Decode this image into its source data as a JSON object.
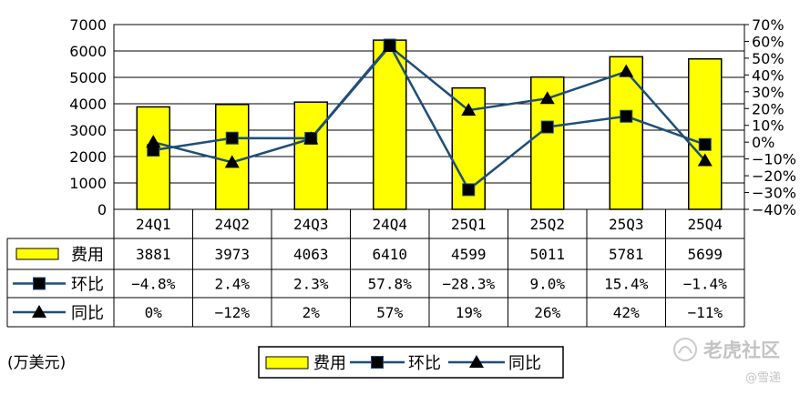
{
  "chart_data": {
    "type": "bar",
    "categories": [
      "24Q1",
      "24Q2",
      "24Q3",
      "24Q4",
      "25Q1",
      "25Q2",
      "25Q3",
      "25Q4"
    ],
    "ylim": [
      0,
      7000
    ],
    "y_ticks": [
      "0",
      "1000",
      "2000",
      "3000",
      "4000",
      "5000",
      "6000",
      "7000"
    ],
    "y2lim": [
      -40,
      70
    ],
    "y2_ticks": [
      "-40%",
      "-30%",
      "-20%",
      "-10%",
      "0%",
      "10%",
      "20%",
      "30%",
      "40%",
      "50%",
      "60%",
      "70%"
    ],
    "grid": true,
    "unit_label": "(万美元)",
    "series": [
      {
        "name": "费用",
        "type": "bar",
        "axis": "left",
        "color": "#ffff00",
        "values": [
          3881,
          3973,
          4063,
          6410,
          4599,
          5011,
          5781,
          5699
        ],
        "labels": [
          "3881",
          "3973",
          "4063",
          "6410",
          "4599",
          "5011",
          "5781",
          "5699"
        ]
      },
      {
        "name": "环比",
        "type": "line",
        "axis": "right",
        "marker": "square",
        "color": "#1f4e79",
        "values": [
          -4.8,
          2.4,
          2.3,
          57.8,
          -28.3,
          9.0,
          15.4,
          -1.4
        ],
        "labels": [
          "-4.8%",
          "2.4%",
          "2.3%",
          "57.8%",
          "-28.3%",
          "9.0%",
          "15.4%",
          "-1.4%"
        ]
      },
      {
        "name": "同比",
        "type": "line",
        "axis": "right",
        "marker": "triangle",
        "color": "#1f4e79",
        "values": [
          0,
          -12,
          2,
          57,
          19,
          26,
          42,
          -11
        ],
        "labels": [
          "0%",
          "-12%",
          "2%",
          "57%",
          "19%",
          "26%",
          "42%",
          "-11%"
        ]
      }
    ],
    "legend": {
      "placement": "bottom-center",
      "items": [
        "费用",
        "环比",
        "同比"
      ]
    }
  },
  "watermark": {
    "text": "老虎社区",
    "sub": "@雪递"
  }
}
